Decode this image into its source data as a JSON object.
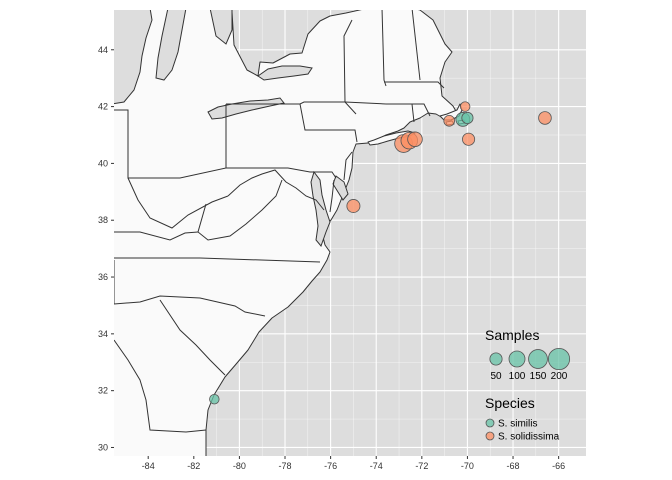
{
  "chart_data": {
    "type": "scatter",
    "subtype": "bubble-map",
    "title": "",
    "xlabel": "",
    "ylabel": "",
    "xlim": [
      -85.5,
      -64.8
    ],
    "ylim": [
      29.7,
      45.4
    ],
    "x_ticks": [
      -84,
      -82,
      -80,
      -78,
      -76,
      -74,
      -72,
      -70,
      -68,
      -66
    ],
    "y_ticks": [
      30,
      32,
      34,
      36,
      38,
      40,
      42,
      44
    ],
    "x_tick_labels": [
      "-84",
      "-82",
      "-80",
      "-78",
      "-76",
      "-74",
      "-72",
      "-70",
      "-68",
      "-66"
    ],
    "y_tick_labels": [
      "30",
      "32",
      "34",
      "36",
      "38",
      "40",
      "42",
      "44"
    ],
    "grid": true,
    "panel_background": "#dddddd",
    "land_color": "#fafafa",
    "series": [
      {
        "name": "S. similis",
        "color": "#66c2a5",
        "points": [
          {
            "lon": -81.1,
            "lat": 31.7,
            "samples": 25
          },
          {
            "lon": -70.2,
            "lat": 41.55,
            "samples": 70
          },
          {
            "lon": -70.0,
            "lat": 41.6,
            "samples": 40
          }
        ]
      },
      {
        "name": "S. solidissima",
        "color": "#fc8d62",
        "points": [
          {
            "lon": -72.8,
            "lat": 40.7,
            "samples": 130
          },
          {
            "lon": -72.55,
            "lat": 40.8,
            "samples": 110
          },
          {
            "lon": -72.3,
            "lat": 40.85,
            "samples": 80
          },
          {
            "lon": -75.0,
            "lat": 38.5,
            "samples": 60
          },
          {
            "lon": -69.95,
            "lat": 40.85,
            "samples": 50
          },
          {
            "lon": -66.6,
            "lat": 41.6,
            "samples": 55
          },
          {
            "lon": -70.1,
            "lat": 42.0,
            "samples": 25
          },
          {
            "lon": -70.8,
            "lat": 41.5,
            "samples": 35
          }
        ]
      }
    ],
    "size_legend": {
      "title": "Samples",
      "values": [
        50,
        100,
        150,
        200
      ],
      "labels": [
        "50",
        "100",
        "150",
        "200"
      ]
    },
    "color_legend": {
      "title": "Species",
      "entries": [
        "S. similis",
        "S. solidissima"
      ]
    },
    "legend_position": "bottom-right inside"
  }
}
